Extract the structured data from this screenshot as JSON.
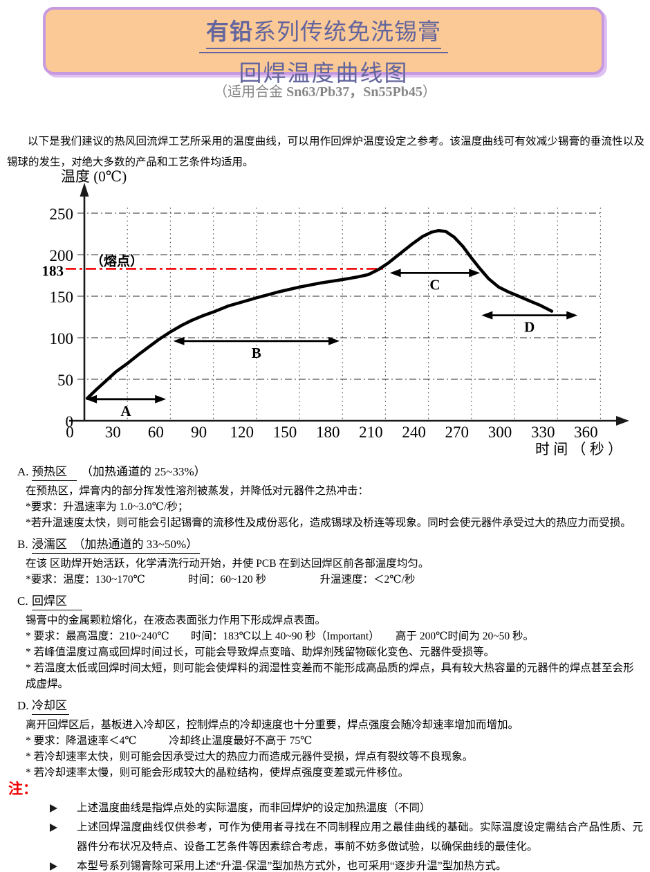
{
  "header": {
    "title_bold": "有铅",
    "title_rest": "系列传统免洗锡膏",
    "title_line2": "回焊温度曲线图",
    "subtitle_pre": "（适用合金 ",
    "subtitle_alloys": "Sn63/Pb37，Sn55Pb45",
    "subtitle_post": "）"
  },
  "intro": "以下是我们建议的热风回流焊工艺所采用的温度曲线，可以用作回焊炉温度设定之参考。该温度曲线可有效减少锡膏的垂流性以及锡球的发生，对绝大多数的产品和工艺条件均适用。",
  "chart_data": {
    "type": "line",
    "title": "",
    "xlabel": "时 间 （ 秒 ）",
    "ylabel": "温度 (0℃)",
    "xlim": [
      0,
      375
    ],
    "ylim": [
      0,
      275
    ],
    "x_ticks": [
      0,
      30,
      60,
      90,
      120,
      150,
      180,
      210,
      240,
      270,
      300,
      330,
      360
    ],
    "y_ticks": [
      0,
      50,
      100,
      150,
      200,
      250
    ],
    "grid": "dash-dot horizontal at 50°C steps, dotted vertical at 30 s steps",
    "legend_position": "none",
    "melting_point": {
      "temp": 183,
      "t_end": 210,
      "line_label": "（熔点）",
      "tick_label": "183",
      "color": "#f20000"
    },
    "series": [
      {
        "name": "回焊温度曲线",
        "color": "#000000"
      }
    ],
    "curve_points": [
      [
        2,
        27
      ],
      [
        8,
        37
      ],
      [
        15,
        48
      ],
      [
        22,
        59
      ],
      [
        30,
        69
      ],
      [
        38,
        80
      ],
      [
        45,
        89
      ],
      [
        52,
        98
      ],
      [
        60,
        107
      ],
      [
        68,
        115
      ],
      [
        75,
        121
      ],
      [
        82,
        126
      ],
      [
        90,
        131
      ],
      [
        100,
        138
      ],
      [
        110,
        143
      ],
      [
        120,
        148
      ],
      [
        135,
        155
      ],
      [
        150,
        161
      ],
      [
        165,
        166
      ],
      [
        180,
        170
      ],
      [
        190,
        173
      ],
      [
        198,
        176
      ],
      [
        205,
        182
      ],
      [
        212,
        190
      ],
      [
        220,
        201
      ],
      [
        228,
        212
      ],
      [
        236,
        222
      ],
      [
        242,
        227
      ],
      [
        247,
        229
      ],
      [
        252,
        228
      ],
      [
        258,
        221
      ],
      [
        264,
        210
      ],
      [
        270,
        196
      ],
      [
        276,
        183
      ],
      [
        282,
        171
      ],
      [
        289,
        161
      ],
      [
        296,
        155
      ],
      [
        303,
        150
      ],
      [
        311,
        144
      ],
      [
        318,
        139
      ],
      [
        326,
        132
      ]
    ],
    "zone_arrows": [
      {
        "label": "A",
        "t1": 1,
        "t2": 57,
        "temp": 26
      },
      {
        "label": "B",
        "t1": 62,
        "t2": 178,
        "temp": 96
      },
      {
        "label": "C",
        "t1": 213,
        "t2": 276,
        "temp": 178
      },
      {
        "label": "D",
        "t1": 277,
        "t2": 344,
        "temp": 127
      }
    ]
  },
  "sections": [
    {
      "id": "A.",
      "name": "预热区",
      "suffix": "（加热通道的 25~33%）",
      "lines": [
        "在预热区，焊膏内的部分挥发性溶剂被蒸发，并降低对元器件之热冲击：",
        "*要求：升温速率为 1.0~3.0℃/秒；",
        "*若升温速度太快，则可能会引起锡膏的流移性及成份恶化，造成锡球及桥连等现象。同时会使元器件承受过大的热应力而受损。"
      ]
    },
    {
      "id": "B.",
      "name": "浸濡区　（加热通道的 33~50%）",
      "suffix": "",
      "lines": [
        "在该 区助焊开始活跃，化学清洗行动开始，并使 PCB 在到达回焊区前各部温度均匀。",
        "*要求：温度：130~170℃　　　　时间：60~120 秒　　　　　升温速度：＜2℃/秒"
      ]
    },
    {
      "id": "C.",
      "name": "回焊区",
      "suffix": "",
      "lines": [
        "锡膏中的金属颗粒熔化，在液态表面张力作用下形成焊点表面。",
        "* 要求：最高温度：210~240℃　　时间：183℃以上 40~90 秒（Important）　　高于 200℃时间为 20~50 秒。",
        "* 若峰值温度过高或回焊时间过长，可能会导致焊点变暗、助焊剂残留物碳化变色、元器件受损等。",
        "* 若温度太低或回焊时间太短，则可能会使焊料的润湿性变差而不能形成高品质的焊点，具有较大热容量的元器件的焊点甚至会形成虚焊。"
      ]
    },
    {
      "id": "D.",
      "name": "冷却区",
      "suffix": "",
      "lines": [
        "离开回焊区后，基板进入冷却区，控制焊点的冷却速度也十分重要，焊点强度会随冷却速率增加而增加。",
        "* 要求：降温速率＜4℃　　　冷却终止温度最好不高于 75℃",
        "* 若冷却速率太快，则可能会因承受过大的热应力而造成元器件受损，焊点有裂纹等不良现象。",
        "* 若冷却速率太慢，则可能会形成较大的晶粒结构，使焊点强度变差或元件移位。"
      ]
    }
  ],
  "notes": {
    "label": "注：",
    "items": [
      "上述温度曲线是指焊点处的实际温度，而非回焊炉的设定加热温度（不同）",
      "上述回焊温度曲线仅供参考，可作为使用者寻找在不同制程应用之最佳曲线的基础。实际温度设定需结合产品性质、元器件分布状况及特点、设备工艺条件等因素综合考虑，事前不妨多做试验，以确保曲线的最佳化。",
      "本型号系列锡膏除可采用上述“升温-保温”型加热方式外，也可采用“逐步升温”型加热方式。"
    ]
  }
}
